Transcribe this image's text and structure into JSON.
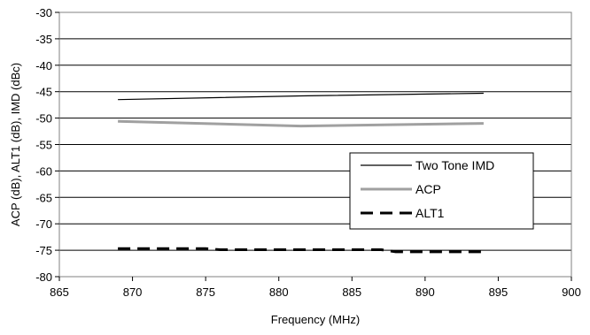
{
  "chart_data": {
    "type": "line",
    "xlabel": "Frequency (MHz)",
    "ylabel": "ACP (dB), ALT1 (dB), IMD (dBc)",
    "xlim": [
      865,
      900
    ],
    "ylim": [
      -80,
      -30
    ],
    "xticks": [
      865,
      870,
      875,
      880,
      885,
      890,
      895,
      900
    ],
    "yticks": [
      -30,
      -35,
      -40,
      -45,
      -50,
      -55,
      -60,
      -65,
      -70,
      -75,
      -80
    ],
    "grid": "horizontal",
    "legend_position": "right",
    "series": [
      {
        "name": "Two Tone IMD",
        "color": "#000000",
        "style": "solid-thin",
        "x": [
          869,
          881.5,
          894
        ],
        "y": [
          -46.5,
          -45.8,
          -45.3
        ]
      },
      {
        "name": "ACP",
        "color": "#a0a0a0",
        "style": "solid-thick",
        "x": [
          869,
          881.5,
          894
        ],
        "y": [
          -50.6,
          -51.5,
          -51.0
        ]
      },
      {
        "name": "ALT1",
        "color": "#000000",
        "style": "dashed-thick",
        "x": [
          869,
          875,
          876,
          881.5,
          887,
          888,
          894
        ],
        "y": [
          -74.7,
          -74.7,
          -74.9,
          -74.9,
          -74.9,
          -75.3,
          -75.3
        ]
      }
    ]
  }
}
